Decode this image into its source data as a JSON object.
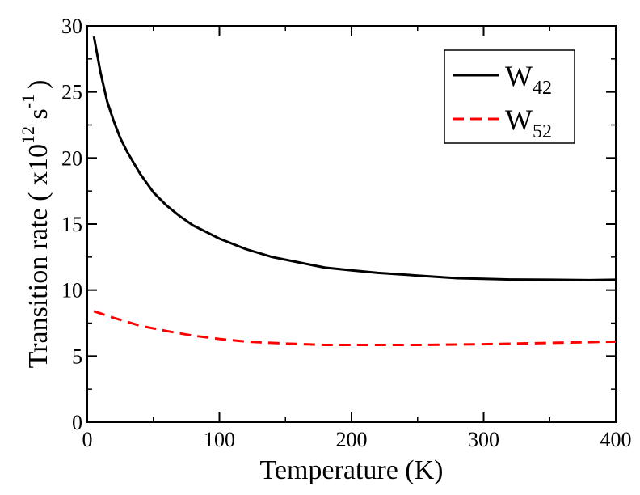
{
  "chart_data": {
    "type": "line",
    "title": "",
    "xlabel": "Temperature (K)",
    "ylabel": {
      "prefix": "Transition rate ( x10",
      "exp1": "12",
      "mid": " s",
      "exp2": "-1",
      "suffix": ")"
    },
    "xlim": [
      0,
      400
    ],
    "ylim": [
      0,
      30
    ],
    "xticks": [
      0,
      100,
      200,
      300,
      400
    ],
    "yticks": [
      0,
      5,
      10,
      15,
      20,
      25,
      30
    ],
    "xtick_labels": [
      "0",
      "100",
      "200",
      "300",
      "400"
    ],
    "ytick_labels": [
      "0",
      "5",
      "10",
      "15",
      "20",
      "25",
      "30"
    ],
    "grid": false,
    "legend_position": "top-right",
    "series": [
      {
        "name": "W42",
        "label_main": "W",
        "label_sub": "42",
        "color": "#000000",
        "style": "solid",
        "x": [
          5,
          10,
          15,
          20,
          25,
          30,
          40,
          50,
          60,
          70,
          80,
          90,
          100,
          120,
          140,
          160,
          180,
          200,
          220,
          250,
          280,
          300,
          320,
          350,
          380,
          400
        ],
        "y": [
          29.2,
          26.5,
          24.3,
          22.8,
          21.5,
          20.5,
          18.8,
          17.4,
          16.4,
          15.6,
          14.9,
          14.4,
          13.9,
          13.1,
          12.5,
          12.1,
          11.7,
          11.5,
          11.3,
          11.1,
          10.9,
          10.85,
          10.8,
          10.78,
          10.75,
          10.78
        ]
      },
      {
        "name": "W52",
        "label_main": "W",
        "label_sub": "52",
        "color": "#ff0000",
        "style": "dashed",
        "x": [
          5,
          20,
          40,
          60,
          80,
          100,
          120,
          150,
          180,
          200,
          250,
          300,
          350,
          400
        ],
        "y": [
          8.4,
          7.9,
          7.3,
          6.9,
          6.55,
          6.3,
          6.1,
          5.95,
          5.85,
          5.85,
          5.85,
          5.9,
          6.0,
          6.1
        ]
      }
    ]
  }
}
